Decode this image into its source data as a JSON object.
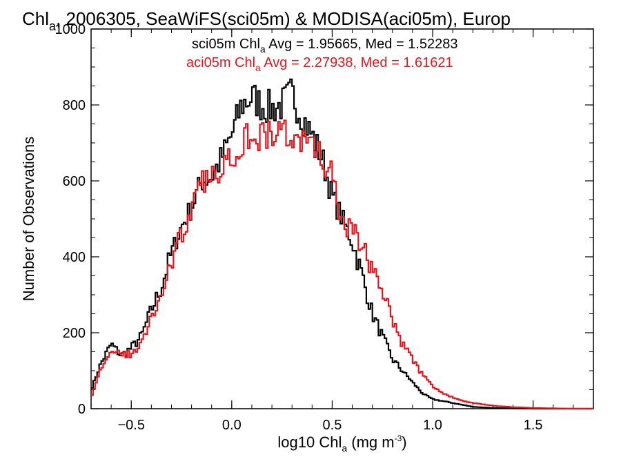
{
  "chart_data": {
    "type": "line",
    "title_main": "Chl",
    "title_sub": "a",
    "title_rest": ", 2006305, SeaWiFS(sci05m) & MODISA(aci05m), Europ",
    "xlabel_main": "log10 Chl",
    "xlabel_sub": "a",
    "xlabel_rest": " (mg m",
    "xlabel_sup": "-3",
    "xlabel_end": ")",
    "ylabel": "Number of Observations",
    "xlim": [
      -0.7,
      1.8
    ],
    "ylim": [
      0,
      1000
    ],
    "xticks": [
      {
        "value": -0.5,
        "label": "−0.5"
      },
      {
        "value": 0.0,
        "label": "0.0"
      },
      {
        "value": 0.5,
        "label": "0.5"
      },
      {
        "value": 1.0,
        "label": "1.0"
      },
      {
        "value": 1.5,
        "label": "1.5"
      }
    ],
    "yticks": [
      {
        "value": 0,
        "label": "0"
      },
      {
        "value": 200,
        "label": "200"
      },
      {
        "value": 400,
        "label": "400"
      },
      {
        "value": 600,
        "label": "600"
      },
      {
        "value": 800,
        "label": "800"
      },
      {
        "value": 1000,
        "label": "1000"
      }
    ],
    "annotations": [
      {
        "main": "sci05m Chl",
        "sub": "a",
        "rest": " Avg = 1.95665, Med = 1.52283",
        "color": "#000000"
      },
      {
        "main": "aci05m Chl",
        "sub": "a",
        "rest": " Avg = 2.27938, Med = 1.61621",
        "color": "#e8141c"
      }
    ],
    "series": [
      {
        "id": "sci05m",
        "color": "#000000",
        "x": [
          -0.7,
          -0.65,
          -0.6,
          -0.55,
          -0.5,
          -0.45,
          -0.4,
          -0.35,
          -0.3,
          -0.25,
          -0.2,
          -0.15,
          -0.1,
          -0.05,
          0.0,
          0.05,
          0.1,
          0.15,
          0.2,
          0.25,
          0.3,
          0.35,
          0.4,
          0.45,
          0.5,
          0.55,
          0.6,
          0.65,
          0.7,
          0.75,
          0.8,
          0.85,
          0.9,
          0.95,
          1.0,
          1.05,
          1.1,
          1.15,
          1.2,
          1.3,
          1.4,
          1.5,
          1.6,
          1.7,
          1.8
        ],
        "y": [
          50,
          120,
          170,
          140,
          160,
          190,
          260,
          320,
          410,
          480,
          530,
          600,
          610,
          660,
          720,
          800,
          820,
          800,
          790,
          800,
          830,
          770,
          720,
          660,
          560,
          500,
          440,
          350,
          250,
          190,
          130,
          100,
          70,
          40,
          25,
          20,
          15,
          10,
          5,
          2,
          1,
          0,
          0,
          0,
          0
        ]
      },
      {
        "id": "aci05m",
        "color": "#e8141c",
        "x": [
          -0.7,
          -0.65,
          -0.6,
          -0.55,
          -0.5,
          -0.45,
          -0.4,
          -0.35,
          -0.3,
          -0.25,
          -0.2,
          -0.15,
          -0.1,
          -0.05,
          0.0,
          0.05,
          0.1,
          0.15,
          0.2,
          0.25,
          0.3,
          0.35,
          0.4,
          0.45,
          0.5,
          0.55,
          0.6,
          0.65,
          0.7,
          0.75,
          0.8,
          0.85,
          0.9,
          0.95,
          1.0,
          1.05,
          1.1,
          1.15,
          1.2,
          1.3,
          1.4,
          1.5,
          1.6,
          1.7,
          1.8
        ],
        "y": [
          30,
          110,
          140,
          150,
          140,
          170,
          240,
          300,
          390,
          460,
          520,
          590,
          610,
          640,
          670,
          700,
          730,
          720,
          720,
          730,
          720,
          700,
          690,
          660,
          610,
          480,
          470,
          430,
          370,
          300,
          240,
          170,
          130,
          90,
          60,
          40,
          30,
          20,
          15,
          8,
          4,
          2,
          1,
          0,
          0
        ]
      }
    ]
  }
}
